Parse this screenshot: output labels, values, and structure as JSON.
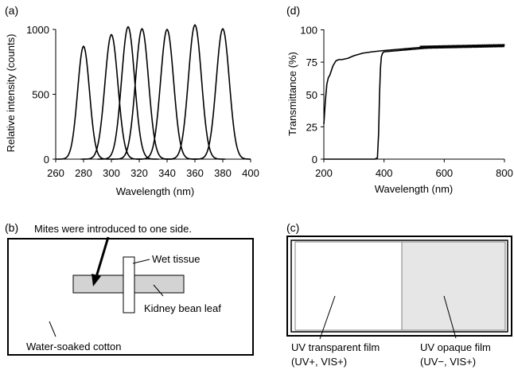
{
  "panels": {
    "a": {
      "letter": "(a)",
      "ylabel": "Relative intensity (counts)",
      "xlabel": "Wavelength (nm)",
      "xticks": [
        "260",
        "280",
        "300",
        "320",
        "340",
        "360",
        "380",
        "400"
      ],
      "yticks": [
        "0",
        "500",
        "1000"
      ]
    },
    "d": {
      "letter": "(d)",
      "ylabel": "Transmittance (%)",
      "xlabel": "Wavelength (nm)",
      "xticks": [
        "200",
        "400",
        "600",
        "800"
      ],
      "yticks": [
        "0",
        "25",
        "50",
        "75",
        "100"
      ]
    },
    "b": {
      "letter": "(b)",
      "mites_note": "Mites were introduced to one side.",
      "wet_tissue": "Wet tissue",
      "leaf": "Kidney bean leaf",
      "cotton": "Water-soaked cotton"
    },
    "c": {
      "letter": "(c)",
      "uv_transparent_line1": "UV transparent  film",
      "uv_transparent_line2": "(UV+, VIS+)",
      "uv_opaque_line1": "UV opaque  film",
      "uv_opaque_line2": "(UV−, VIS+)"
    }
  },
  "colors": {
    "line": "#000000",
    "leaf_fill": "#d3d3d3",
    "opaque_fill": "#e6e6e6",
    "divider": "#808080"
  },
  "chart_data": [
    {
      "type": "line",
      "panel": "a",
      "xlabel": "Wavelength (nm)",
      "ylabel": "Relative intensity (counts)",
      "xlim": [
        260,
        400
      ],
      "ylim": [
        0,
        1100
      ],
      "series": [
        {
          "peak": 280,
          "height": 870,
          "fwhm": 10
        },
        {
          "peak": 300,
          "height": 960,
          "fwhm": 11
        },
        {
          "peak": 312,
          "height": 1020,
          "fwhm": 11
        },
        {
          "peak": 322,
          "height": 1005,
          "fwhm": 11
        },
        {
          "peak": 340,
          "height": 1000,
          "fwhm": 11
        },
        {
          "peak": 360,
          "height": 1035,
          "fwhm": 11
        },
        {
          "peak": 380,
          "height": 1005,
          "fwhm": 11
        }
      ]
    },
    {
      "type": "line",
      "panel": "d",
      "xlabel": "Wavelength (nm)",
      "ylabel": "Transmittance (%)",
      "xlim": [
        200,
        800
      ],
      "ylim": [
        0,
        100
      ],
      "series": [
        {
          "x": [
            200,
            205,
            210,
            215,
            220,
            230,
            240,
            250,
            260,
            280,
            300,
            330,
            360,
            400,
            450,
            500,
            550,
            600,
            700,
            800
          ],
          "y": [
            27,
            45,
            58,
            63,
            65,
            72,
            76,
            77,
            77,
            78,
            80,
            82,
            83,
            84,
            85,
            86,
            87,
            87,
            87,
            88
          ]
        },
        {
          "x": [
            200,
            370,
            378,
            382,
            385,
            388,
            391,
            395,
            400,
            450,
            500,
            550,
            600,
            700,
            800
          ],
          "y": [
            0,
            0,
            1,
            20,
            50,
            70,
            79,
            82,
            83,
            84,
            85,
            86,
            87,
            87,
            88
          ]
        }
      ]
    }
  ]
}
